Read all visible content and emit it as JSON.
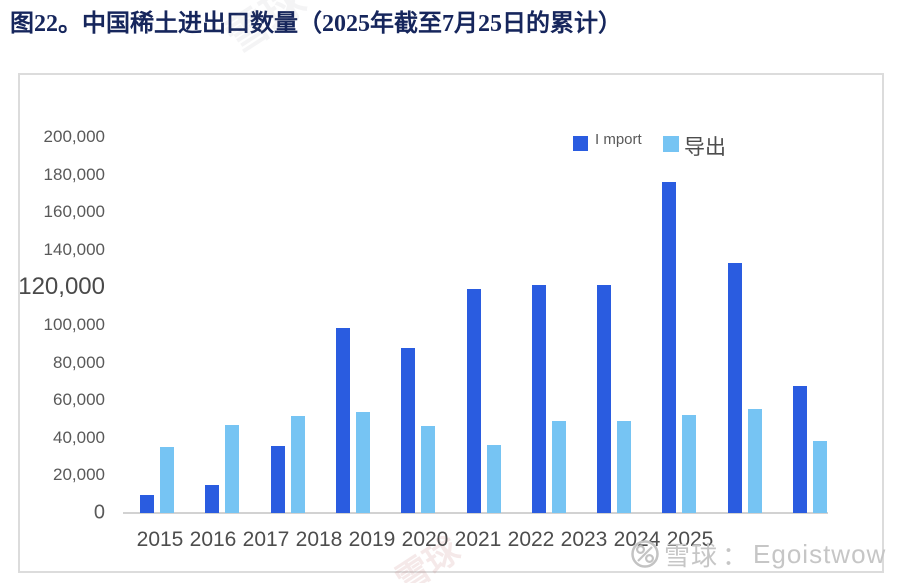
{
  "page": {
    "title": "图22。中国稀土进出口数量（2025年截至7月25日的累计）"
  },
  "legend": {
    "import_label": "I mport",
    "export_label": "导出"
  },
  "watermark": {
    "site_label": "雪球",
    "separator": "：",
    "username": "Egoistwow",
    "color": "#c6c6c6"
  },
  "chart_data": {
    "type": "bar",
    "title": "图22。中国稀土进出口数量（2025年截至7月25日的累计）",
    "categories": [
      "2015",
      "2016",
      "2017",
      "2018",
      "2019",
      "2020",
      "2021",
      "2022",
      "2023",
      "2024",
      "2025"
    ],
    "series": [
      {
        "name": "Import",
        "color": "#2a5ce0",
        "values": [
          9500,
          15000,
          35500,
          98500,
          88000,
          119000,
          121500,
          121500,
          176000,
          133000,
          67500
        ]
      },
      {
        "name": "导出",
        "color": "#76c4f3",
        "values": [
          35000,
          47000,
          51500,
          53500,
          46500,
          36000,
          49000,
          49000,
          52000,
          55500,
          38500
        ]
      }
    ],
    "ylim": [
      0,
      200000
    ],
    "ytick_labels": [
      "0",
      "20,000",
      "40,000",
      "60,000",
      "80,000",
      "100,000",
      "120,000",
      "140,000",
      "160,000",
      "180,000",
      "200,000"
    ],
    "grid": false,
    "legend_position": "top-center"
  }
}
